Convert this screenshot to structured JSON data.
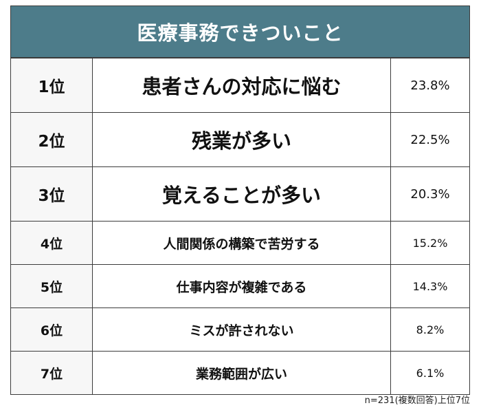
{
  "chart_data": {
    "type": "table",
    "title": "医療事務できついこと",
    "rows": [
      {
        "rank": "1位",
        "item": "患者さんの対応に悩む",
        "percent": "23.8%",
        "value": 23.8
      },
      {
        "rank": "2位",
        "item": "残業が多い",
        "percent": "22.5%",
        "value": 22.5
      },
      {
        "rank": "3位",
        "item": "覚えることが多い",
        "percent": "20.3%",
        "value": 20.3
      },
      {
        "rank": "4位",
        "item": "人間関係の構築で苦労する",
        "percent": "15.2%",
        "value": 15.2
      },
      {
        "rank": "5位",
        "item": "仕事内容が複雑である",
        "percent": "14.3%",
        "value": 14.3
      },
      {
        "rank": "6位",
        "item": "ミスが許されない",
        "percent": "8.2%",
        "value": 8.2
      },
      {
        "rank": "7位",
        "item": "業務範囲が広い",
        "percent": "6.1%",
        "value": 6.1
      }
    ],
    "note": "n=231(複数回答)上位7位"
  },
  "colors": {
    "header_bg": "#4d7c8a",
    "header_text": "#ffffff",
    "rank_bg": "#f7f7f7",
    "border": "#3b3b3b"
  }
}
